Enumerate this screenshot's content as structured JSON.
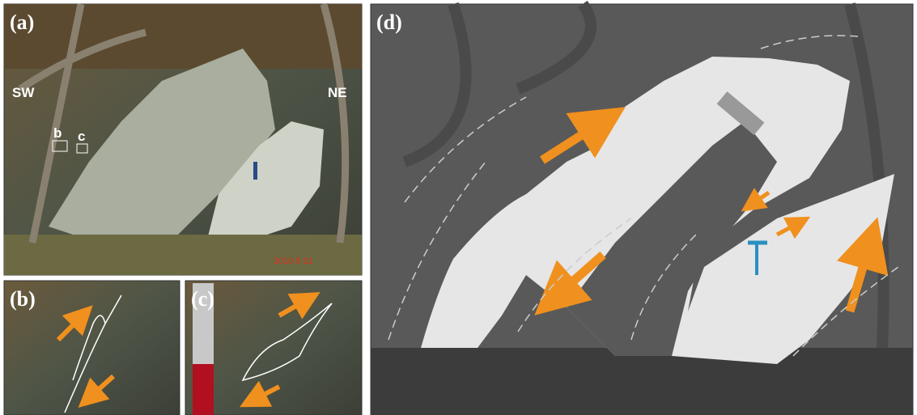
{
  "panels": [
    {
      "label": "(a)",
      "annotations": [
        "SW",
        "NE",
        "b",
        "c"
      ],
      "date_stamp": "2010  8 21"
    },
    {
      "label": "(b)"
    },
    {
      "label": "(c)"
    },
    {
      "label": "(d)"
    }
  ]
}
